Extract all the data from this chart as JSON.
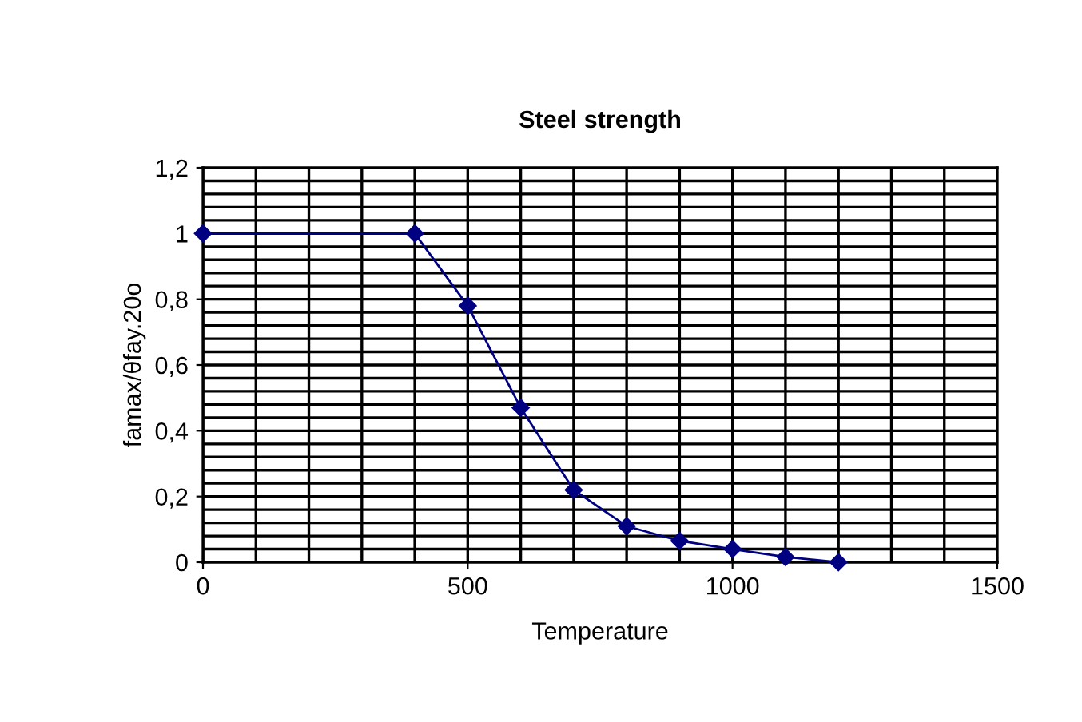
{
  "chart_data": {
    "type": "line",
    "title": "Steel strength",
    "xlabel": "Temperature",
    "ylabel": "famax/θfay.20o",
    "x": [
      0,
      400,
      500,
      600,
      700,
      800,
      900,
      1000,
      1100,
      1200
    ],
    "series": [
      {
        "color": "#000080",
        "values": [
          1,
          1,
          0.78,
          0.47,
          0.22,
          0.11,
          0.065,
          0.04,
          0.016,
          0
        ]
      }
    ],
    "xlim": [
      0,
      1500
    ],
    "xticks": [
      0,
      500,
      1000,
      1500
    ],
    "ylim": [
      0,
      1.2
    ],
    "yticks": [
      0,
      {
        "value": 0.2,
        "label": "0,2"
      },
      {
        "value": 0.4,
        "label": "0,4"
      },
      {
        "value": 0.6,
        "label": "0,6"
      },
      {
        "value": 0.8,
        "label": "0,8"
      },
      1,
      {
        "value": 1.2,
        "label": "1,2"
      }
    ],
    "grid": true,
    "marker": "diamond",
    "line_style": "solid",
    "legend": false
  }
}
